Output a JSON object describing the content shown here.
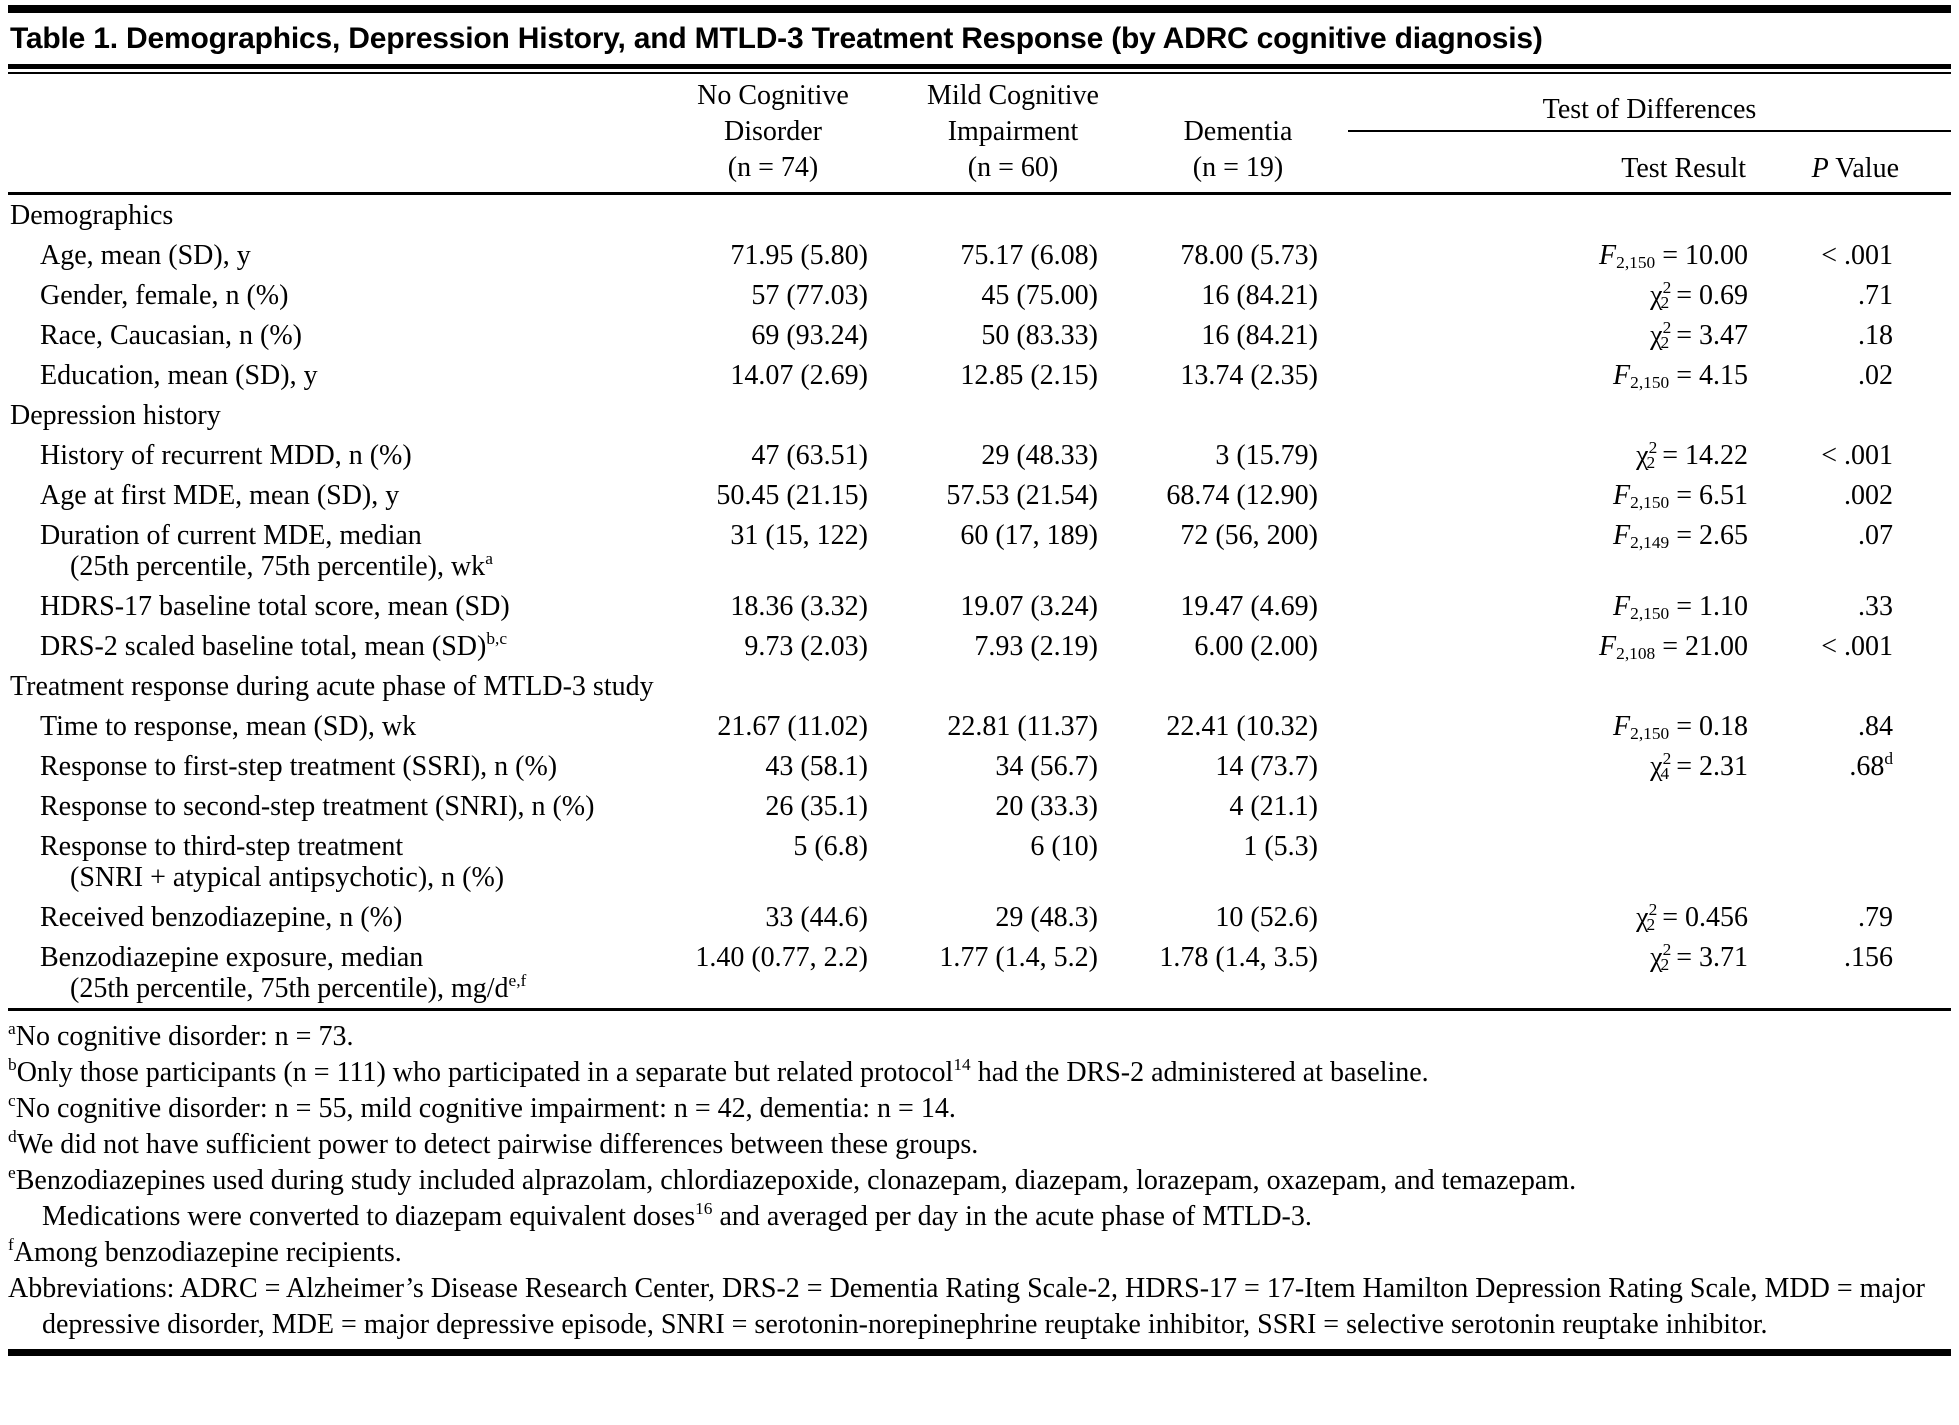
{
  "colors": {
    "background": "#ffffff",
    "text": "#000000",
    "rule": "#000000"
  },
  "title": "Table 1. Demographics, Depression History, and MTLD-3 Treatment Response (by ADRC cognitive diagnosis)",
  "table": {
    "columns": [
      {
        "lines": [
          "No Cognitive",
          "Disorder",
          "(n = 74)"
        ]
      },
      {
        "lines": [
          "Mild Cognitive",
          "Impairment",
          "(n = 60)"
        ]
      },
      {
        "lines": [
          "Dementia",
          "(n = 19)"
        ]
      }
    ],
    "test_group": "Test of Differences",
    "test_result_header": "Test Result",
    "p_value_header": "*P* Value",
    "rows": [
      {
        "section": "Demographics"
      },
      {
        "label": "Age, mean (SD), y",
        "c1": "71.95 (5.80)",
        "c2": "75.17 (6.08)",
        "c3": "78.00 (5.73)",
        "test": "*F*_{2,150} = 10.00",
        "p": "< .001"
      },
      {
        "label": "Gender, female, n (%)",
        "c1": "57 (77.03)",
        "c2": "45 (75.00)",
        "c3": "16 (84.21)",
        "test": "χ^{2}_{2} = 0.69",
        "p": ".71"
      },
      {
        "label": "Race, Caucasian, n (%)",
        "c1": "69 (93.24)",
        "c2": "50 (83.33)",
        "c3": "16 (84.21)",
        "test": "χ^{2}_{2} = 3.47",
        "p": ".18"
      },
      {
        "label": "Education, mean (SD), y",
        "c1": "14.07 (2.69)",
        "c2": "12.85 (2.15)",
        "c3": "13.74 (2.35)",
        "test": "*F*_{2,150} = 4.15",
        "p": ".02"
      },
      {
        "section": "Depression history"
      },
      {
        "label": "History of recurrent MDD, n (%)",
        "c1": "47 (63.51)",
        "c2": "29 (48.33)",
        "c3": "3 (15.79)",
        "test": "χ^{2}_{2} = 14.22",
        "p": "< .001"
      },
      {
        "label": "Age at first MDE, mean (SD), y",
        "c1": "50.45 (21.15)",
        "c2": "57.53 (21.54)",
        "c3": "68.74 (12.90)",
        "test": "*F*_{2,150} = 6.51",
        "p": ".002"
      },
      {
        "label": "Duration of current MDE, median",
        "label2": "(25th percentile, 75th percentile), wk^{a}",
        "c1": "31 (15, 122)",
        "c2": "60 (17, 189)",
        "c3": "72 (56, 200)",
        "test": "*F*_{2,149} = 2.65",
        "p": ".07"
      },
      {
        "label": "HDRS-17 baseline total score, mean (SD)",
        "c1": "18.36 (3.32)",
        "c2": "19.07 (3.24)",
        "c3": "19.47 (4.69)",
        "test": "*F*_{2,150} = 1.10",
        "p": ".33"
      },
      {
        "label": "DRS-2 scaled baseline total, mean (SD)^{b,c}",
        "c1": "9.73 (2.03)",
        "c2": "7.93 (2.19)",
        "c3": "6.00 (2.00)",
        "test": "*F*_{2,108} = 21.00",
        "p": "< .001"
      },
      {
        "section": "Treatment response during acute phase of MTLD-3 study"
      },
      {
        "label": "Time to response, mean (SD), wk",
        "c1": "21.67 (11.02)",
        "c2": "22.81 (11.37)",
        "c3": "22.41 (10.32)",
        "test": "*F*_{2,150} = 0.18",
        "p": ".84"
      },
      {
        "label": "Response to first-step treatment (SSRI), n (%)",
        "c1": "43 (58.1)",
        "c2": "34 (56.7)",
        "c3": "14 (73.7)",
        "test": "χ^{2}_{4} = 2.31",
        "p": ".68^{d}"
      },
      {
        "label": "Response to second-step treatment (SNRI), n (%)",
        "c1": "26 (35.1)",
        "c2": "20 (33.3)",
        "c3": "4 (21.1)",
        "test": "",
        "p": ""
      },
      {
        "label": "Response to third-step treatment",
        "label2": "(SNRI + atypical antipsychotic), n (%)",
        "c1": "5 (6.8)",
        "c2": "6 (10)",
        "c3": "1 (5.3)",
        "test": "",
        "p": ""
      },
      {
        "label": "Received benzodiazepine, n (%)",
        "c1": "33 (44.6)",
        "c2": "29 (48.3)",
        "c3": "10 (52.6)",
        "test": "χ^{2}_{2} = 0.456",
        "p": ".79"
      },
      {
        "label": "Benzodiazepine exposure, median",
        "label2": "(25th percentile, 75th percentile), mg/d^{e,f}",
        "c1": "1.40 (0.77, 2.2)",
        "c2": "1.77 (1.4, 5.2)",
        "c3": "1.78 (1.4, 3.5)",
        "test": "χ^{2}_{2} = 3.71",
        "p": ".156"
      }
    ]
  },
  "footnotes": [
    "^{a}No cognitive disorder: n = 73.",
    "^{b}Only those participants (n = 111) who participated in a separate but related protocol^{14} had the DRS-2 administered at baseline.",
    "^{c}No cognitive disorder: n = 55, mild cognitive impairment: n = 42, dementia: n = 14.",
    "^{d}We did not have sufficient power to detect pairwise differences between these groups.",
    "^{e}Benzodiazepines used during study included alprazolam, chlordiazepoxide, clonazepam, diazepam, lorazepam, oxazepam, and temazepam.\nMedications were converted to diazepam equivalent doses^{16} and averaged per day in the acute phase of MTLD-3.",
    "^{f}Among benzodiazepine recipients.",
    "Abbreviations: ADRC = Alzheimer’s Disease Research Center, DRS-2 = Dementia Rating Scale-2, HDRS-17 = 17-Item Hamilton Depression Rating Scale, MDD = major depressive disorder, MDE = major depressive episode, SNRI = serotonin-norepinephrine reuptake inhibitor, SSRI = selective serotonin reuptake inhibitor."
  ]
}
